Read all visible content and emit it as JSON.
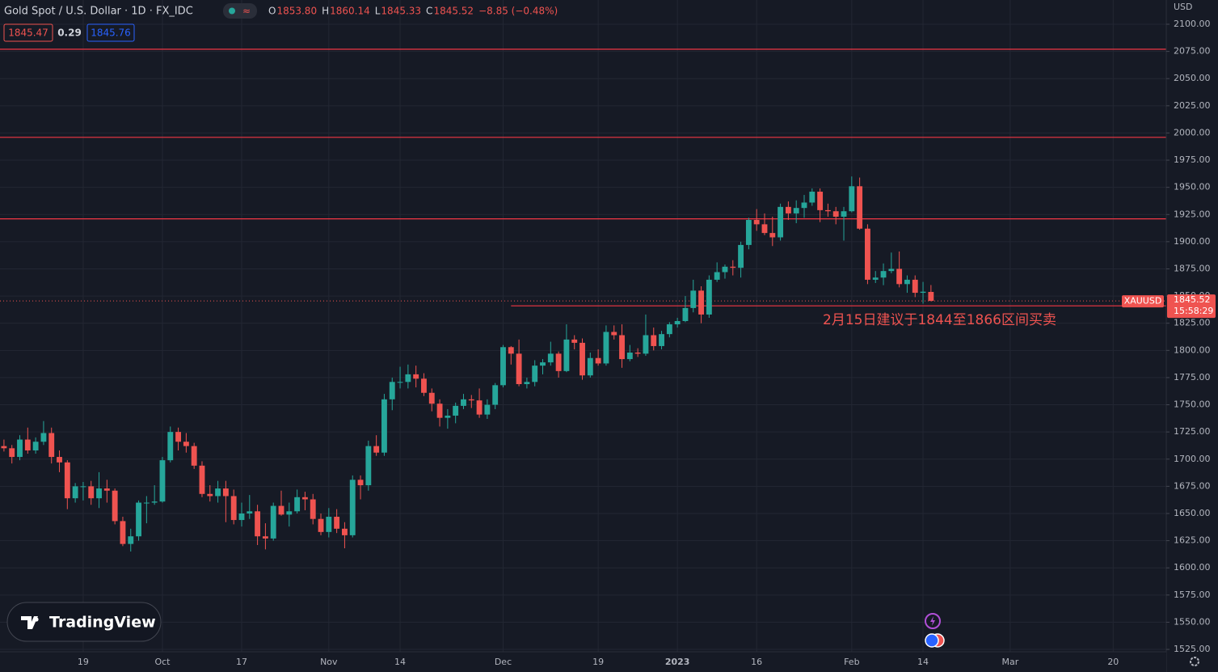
{
  "chart_data": {
    "type": "candlestick",
    "title": "Gold Spot / U.S. Dollar · 1D · FX_IDC",
    "legend_items": [
      {
        "label": "O",
        "value": "1853.80"
      },
      {
        "label": "H",
        "value": "1860.14"
      },
      {
        "label": "L",
        "value": "1845.33"
      },
      {
        "label": "C",
        "value": "1845.52"
      }
    ],
    "change": "−8.85 (−0.48%)",
    "bid": "1845.47",
    "spread": "0.29",
    "ask": "1845.76",
    "currency": "USD",
    "symbol": "XAUUSD",
    "countdown": "15:58:29",
    "annotation": "2月15日建议于1844至1866区间买卖",
    "logo": "TradingView",
    "up_color": "#26a69a",
    "down_color": "#ef5350",
    "line_color": "#f23645",
    "grid": true,
    "open": [
      1712,
      1710,
      1702,
      1718,
      1708,
      1716,
      1724,
      1702,
      1697,
      1664,
      1675,
      1675,
      1664,
      1673,
      1671,
      1643,
      1622,
      1629,
      1660,
      1660,
      1661,
      1699,
      1725,
      1716,
      1712,
      1694,
      1668,
      1666,
      1673,
      1666,
      1644,
      1650,
      1652,
      1629,
      1627,
      1657,
      1649,
      1652,
      1665,
      1663,
      1645,
      1633,
      1647,
      1636,
      1630,
      1681,
      1676,
      1712,
      1706,
      1755,
      1771,
      1771,
      1778,
      1774,
      1761,
      1751,
      1738,
      1740,
      1749,
      1755,
      1754,
      1741,
      1750,
      1768,
      1803,
      1797,
      1769,
      1771,
      1786,
      1789,
      1797,
      1781,
      1810,
      1807,
      1777,
      1793,
      1788,
      1817,
      1814,
      1792,
      1798,
      1797,
      1814,
      1804,
      1815,
      1824,
      1827,
      1839,
      1855,
      1833,
      1865,
      1872,
      1877,
      1876,
      1897,
      1920,
      1916,
      1908,
      1904,
      1932,
      1926,
      1931,
      1936,
      1946,
      1929,
      1928,
      1923,
      1928,
      1951,
      1912,
      1865,
      1867,
      1873,
      1875,
      1861,
      1865,
      1853,
      1853.8
    ],
    "high": [
      1718,
      1713,
      1722,
      1729,
      1720,
      1735,
      1729,
      1708,
      1699,
      1678,
      1679,
      1680,
      1688,
      1681,
      1673,
      1647,
      1636,
      1662,
      1666,
      1676,
      1702,
      1730,
      1729,
      1724,
      1715,
      1698,
      1676,
      1680,
      1680,
      1672,
      1660,
      1667,
      1658,
      1641,
      1660,
      1671,
      1660,
      1672,
      1670,
      1668,
      1650,
      1655,
      1654,
      1642,
      1685,
      1685,
      1717,
      1722,
      1760,
      1775,
      1785,
      1787,
      1786,
      1779,
      1765,
      1755,
      1746,
      1752,
      1760,
      1759,
      1765,
      1755,
      1770,
      1805,
      1804,
      1810,
      1775,
      1791,
      1792,
      1808,
      1799,
      1824,
      1814,
      1811,
      1798,
      1801,
      1823,
      1823,
      1824,
      1805,
      1802,
      1833,
      1821,
      1818,
      1826,
      1830,
      1850,
      1865,
      1859,
      1869,
      1881,
      1879,
      1883,
      1900,
      1922,
      1930,
      1926,
      1923,
      1935,
      1937,
      1938,
      1943,
      1949,
      1949,
      1935,
      1932,
      1932,
      1960,
      1959,
      1916,
      1873,
      1880,
      1890,
      1891,
      1869,
      1869,
      1863,
      1860.14
    ],
    "low": [
      1707,
      1696,
      1699,
      1705,
      1705,
      1713,
      1696,
      1688,
      1654,
      1660,
      1662,
      1658,
      1655,
      1660,
      1640,
      1620,
      1615,
      1625,
      1641,
      1658,
      1660,
      1697,
      1708,
      1706,
      1691,
      1665,
      1661,
      1660,
      1642,
      1640,
      1638,
      1645,
      1621,
      1617,
      1625,
      1648,
      1638,
      1650,
      1653,
      1640,
      1630,
      1628,
      1632,
      1618,
      1628,
      1663,
      1671,
      1703,
      1703,
      1745,
      1765,
      1765,
      1766,
      1758,
      1744,
      1730,
      1728,
      1733,
      1746,
      1747,
      1738,
      1737,
      1746,
      1766,
      1787,
      1767,
      1765,
      1767,
      1778,
      1786,
      1775,
      1780,
      1801,
      1773,
      1775,
      1786,
      1786,
      1810,
      1784,
      1790,
      1794,
      1795,
      1800,
      1801,
      1812,
      1821,
      1826,
      1835,
      1825,
      1830,
      1863,
      1866,
      1869,
      1867,
      1893,
      1910,
      1906,
      1896,
      1901,
      1920,
      1917,
      1922,
      1933,
      1918,
      1923,
      1916,
      1901,
      1927,
      1911,
      1861,
      1862,
      1860,
      1871,
      1858,
      1853,
      1849,
      1843,
      1845.33
    ],
    "close": [
      1710,
      1702,
      1718,
      1708,
      1716,
      1724,
      1702,
      1697,
      1664,
      1675,
      1675,
      1664,
      1673,
      1671,
      1643,
      1622,
      1629,
      1660,
      1660,
      1661,
      1699,
      1725,
      1716,
      1712,
      1694,
      1668,
      1666,
      1673,
      1666,
      1644,
      1650,
      1652,
      1629,
      1627,
      1657,
      1649,
      1652,
      1665,
      1663,
      1645,
      1633,
      1647,
      1636,
      1630,
      1681,
      1676,
      1712,
      1706,
      1755,
      1771,
      1771,
      1778,
      1774,
      1761,
      1751,
      1738,
      1740,
      1749,
      1755,
      1754,
      1741,
      1750,
      1768,
      1803,
      1797,
      1769,
      1771,
      1786,
      1789,
      1797,
      1781,
      1810,
      1807,
      1777,
      1793,
      1788,
      1817,
      1814,
      1792,
      1798,
      1797,
      1814,
      1804,
      1815,
      1824,
      1827,
      1839,
      1855,
      1833,
      1865,
      1872,
      1877,
      1876,
      1897,
      1920,
      1916,
      1908,
      1904,
      1932,
      1926,
      1931,
      1936,
      1946,
      1929,
      1928,
      1923,
      1928,
      1951,
      1912,
      1865,
      1867,
      1873,
      1875,
      1861,
      1865,
      1853,
      1854,
      1845.52
    ],
    "hlines": [
      {
        "value": 2077
      },
      {
        "value": 1996
      },
      {
        "value": 1921
      },
      {
        "value": 1841,
        "start": 64
      }
    ],
    "xlim": [
      -0.5,
      146.7
    ],
    "xticks": [
      {
        "value": 10,
        "label": "19"
      },
      {
        "value": 20,
        "label": "Oct"
      },
      {
        "value": 30,
        "label": "17"
      },
      {
        "value": 41,
        "label": "Nov"
      },
      {
        "value": 50,
        "label": "14"
      },
      {
        "value": 63,
        "label": "Dec"
      },
      {
        "value": 75,
        "label": "19"
      },
      {
        "value": 85,
        "label": "2023"
      },
      {
        "value": 95,
        "label": "16"
      },
      {
        "value": 107,
        "label": "Feb"
      },
      {
        "value": 116,
        "label": "14"
      },
      {
        "value": 127,
        "label": "Mar"
      },
      {
        "value": 140,
        "label": "20"
      }
    ],
    "ylim": [
      1522.8,
      2122.3
    ],
    "yticks": [
      {
        "value": 1525,
        "label": "1525.00"
      },
      {
        "value": 1550,
        "label": "1550.00"
      },
      {
        "value": 1575,
        "label": "1575.00"
      },
      {
        "value": 1600,
        "label": "1600.00"
      },
      {
        "value": 1625,
        "label": "1625.00"
      },
      {
        "value": 1650,
        "label": "1650.00"
      },
      {
        "value": 1675,
        "label": "1675.00"
      },
      {
        "value": 1700,
        "label": "1700.00"
      },
      {
        "value": 1725,
        "label": "1725.00"
      },
      {
        "value": 1750,
        "label": "1750.00"
      },
      {
        "value": 1775,
        "label": "1775.00"
      },
      {
        "value": 1800,
        "label": "1800.00"
      },
      {
        "value": 1825,
        "label": "1825.00"
      },
      {
        "value": 1850,
        "label": "1850.00"
      },
      {
        "value": 1875,
        "label": "1875.00"
      },
      {
        "value": 1900,
        "label": "1900.00"
      },
      {
        "value": 1925,
        "label": "1925.00"
      },
      {
        "value": 1950,
        "label": "1950.00"
      },
      {
        "value": 1975,
        "label": "1975.00"
      },
      {
        "value": 2000,
        "label": "2000.00"
      },
      {
        "value": 2025,
        "label": "2025.00"
      },
      {
        "value": 2050,
        "label": "2050.00"
      },
      {
        "value": 2075,
        "label": "2075.00"
      },
      {
        "value": 2100,
        "label": "2100.00"
      }
    ]
  }
}
